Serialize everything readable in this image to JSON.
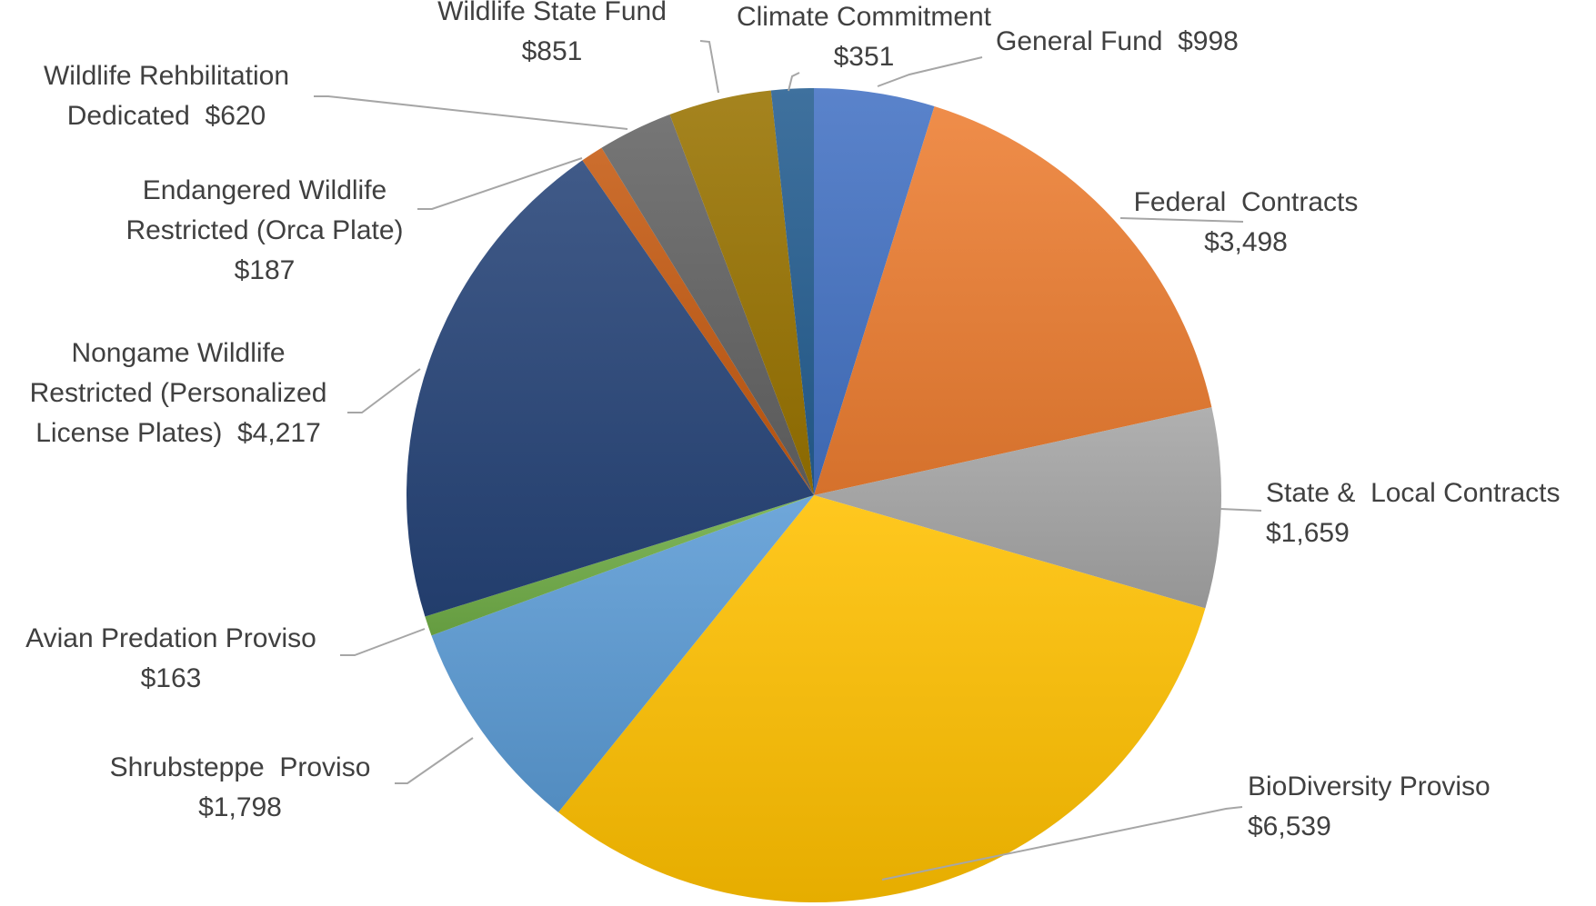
{
  "chart_data": {
    "type": "pie",
    "title": "",
    "start": "12 o'clock",
    "direction": "clockwise",
    "slices": [
      {
        "name": "General Fund",
        "value": 998,
        "label_lines": [
          "General Fund  $998"
        ],
        "color": "#4472c4"
      },
      {
        "name": "Federal Contracts",
        "value": 3498,
        "label_lines": [
          "Federal  Contracts",
          "$3,498"
        ],
        "color": "#ed7d31"
      },
      {
        "name": "State &  Local Contracts",
        "value": 1659,
        "label_lines": [
          "State &  Local Contracts",
          "$1,659"
        ],
        "color": "#a5a5a5"
      },
      {
        "name": "BioDiversity Proviso",
        "value": 6539,
        "label_lines": [
          "BioDiversity Proviso",
          "$6,539"
        ],
        "color": "#ffc000"
      },
      {
        "name": "Shrubsteppe Proviso",
        "value": 1798,
        "label_lines": [
          "Shrubsteppe  Proviso",
          "$1,798"
        ],
        "color": "#5b9bd5"
      },
      {
        "name": "Avian Predation Proviso",
        "value": 163,
        "label_lines": [
          "Avian Predation Proviso",
          "$163"
        ],
        "color": "#70ad47"
      },
      {
        "name": "Nongame Wildlife Restricted (Personalized License Plates)",
        "value": 4217,
        "label_lines": [
          "Nongame Wildlife",
          "Restricted (Personalized",
          "License Plates)  $4,217"
        ],
        "color": "#264478"
      },
      {
        "name": "Endangered Wildlife Restricted (Orca Plate)",
        "value": 187,
        "label_lines": [
          "Endangered Wildlife",
          "Restricted (Orca Plate)",
          "$187"
        ],
        "color": "#c55a11"
      },
      {
        "name": "Wildlife Rehbilitation Dedicated",
        "value": 620,
        "label_lines": [
          "Wildlife Rehbilitation",
          "Dedicated  $620"
        ],
        "color": "#636363"
      },
      {
        "name": "Wildlife State Fund",
        "value": 851,
        "label_lines": [
          "Wildlife State Fund",
          "$851"
        ],
        "color": "#997300"
      },
      {
        "name": "Climate Commitment",
        "value": 351,
        "label_lines": [
          "Climate Commitment",
          "$351"
        ],
        "color": "#255e91"
      }
    ]
  }
}
